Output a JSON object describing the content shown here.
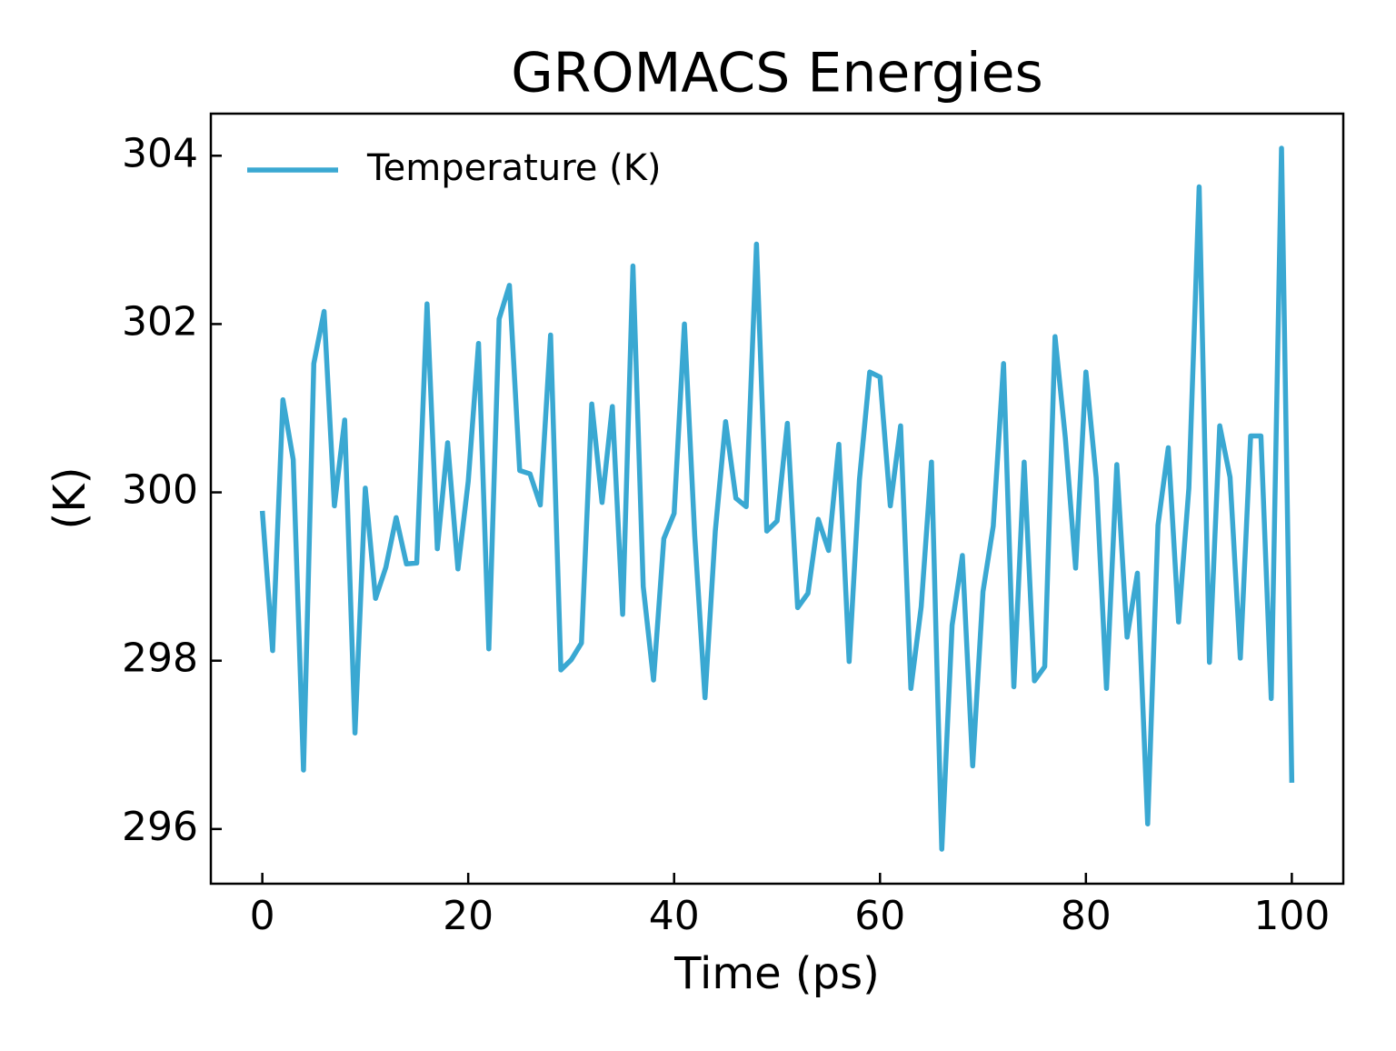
{
  "chart_data": {
    "type": "line",
    "title": "GROMACS Energies",
    "xlabel": "Time (ps)",
    "ylabel": "(K)",
    "x": [
      0,
      1,
      2,
      3,
      4,
      5,
      6,
      7,
      8,
      9,
      10,
      11,
      12,
      13,
      14,
      15,
      16,
      17,
      18,
      19,
      20,
      21,
      22,
      23,
      24,
      25,
      26,
      27,
      28,
      29,
      30,
      31,
      32,
      33,
      34,
      35,
      36,
      37,
      38,
      39,
      40,
      41,
      42,
      43,
      44,
      45,
      46,
      47,
      48,
      49,
      50,
      51,
      52,
      53,
      54,
      55,
      56,
      57,
      58,
      59,
      60,
      61,
      62,
      63,
      64,
      65,
      66,
      67,
      68,
      69,
      70,
      71,
      72,
      73,
      74,
      75,
      76,
      77,
      78,
      79,
      80,
      81,
      82,
      83,
      84,
      85,
      86,
      87,
      88,
      89,
      90,
      91,
      92,
      93,
      94,
      95,
      96,
      97,
      98,
      99,
      100
    ],
    "series": [
      {
        "name": "Temperature (K)",
        "color": "#3aa8d2",
        "values": [
          299.78,
          298.12,
          301.1,
          300.39,
          296.7,
          301.53,
          302.15,
          299.84,
          300.86,
          297.14,
          300.05,
          298.74,
          299.11,
          299.7,
          299.15,
          299.16,
          302.24,
          299.33,
          300.59,
          299.09,
          300.13,
          301.77,
          298.14,
          302.06,
          302.46,
          300.26,
          300.22,
          299.85,
          301.87,
          297.89,
          298.01,
          298.21,
          301.05,
          299.88,
          301.02,
          298.55,
          302.69,
          298.88,
          297.77,
          299.45,
          299.75,
          302.0,
          299.49,
          297.56,
          299.54,
          300.84,
          299.93,
          299.83,
          302.95,
          299.54,
          299.66,
          300.82,
          298.63,
          298.8,
          299.68,
          299.31,
          300.57,
          297.99,
          300.15,
          301.43,
          301.37,
          299.84,
          300.79,
          297.67,
          298.64,
          300.36,
          295.76,
          298.42,
          299.25,
          296.75,
          298.82,
          299.6,
          301.53,
          297.69,
          300.36,
          297.76,
          297.93,
          301.85,
          300.65,
          299.1,
          301.43,
          300.17,
          297.67,
          300.33,
          298.28,
          299.04,
          296.06,
          299.61,
          300.53,
          298.46,
          300.05,
          303.63,
          297.98,
          300.79,
          300.18,
          298.03,
          300.67,
          300.67,
          297.55,
          304.09,
          296.55
        ]
      }
    ],
    "xlim": [
      -5,
      105
    ],
    "ylim": [
      295.35,
      304.5
    ],
    "xticks": [
      0,
      20,
      40,
      60,
      80,
      100
    ],
    "yticks": [
      296,
      298,
      300,
      302,
      304
    ],
    "grid": false,
    "legend": "upper left"
  }
}
